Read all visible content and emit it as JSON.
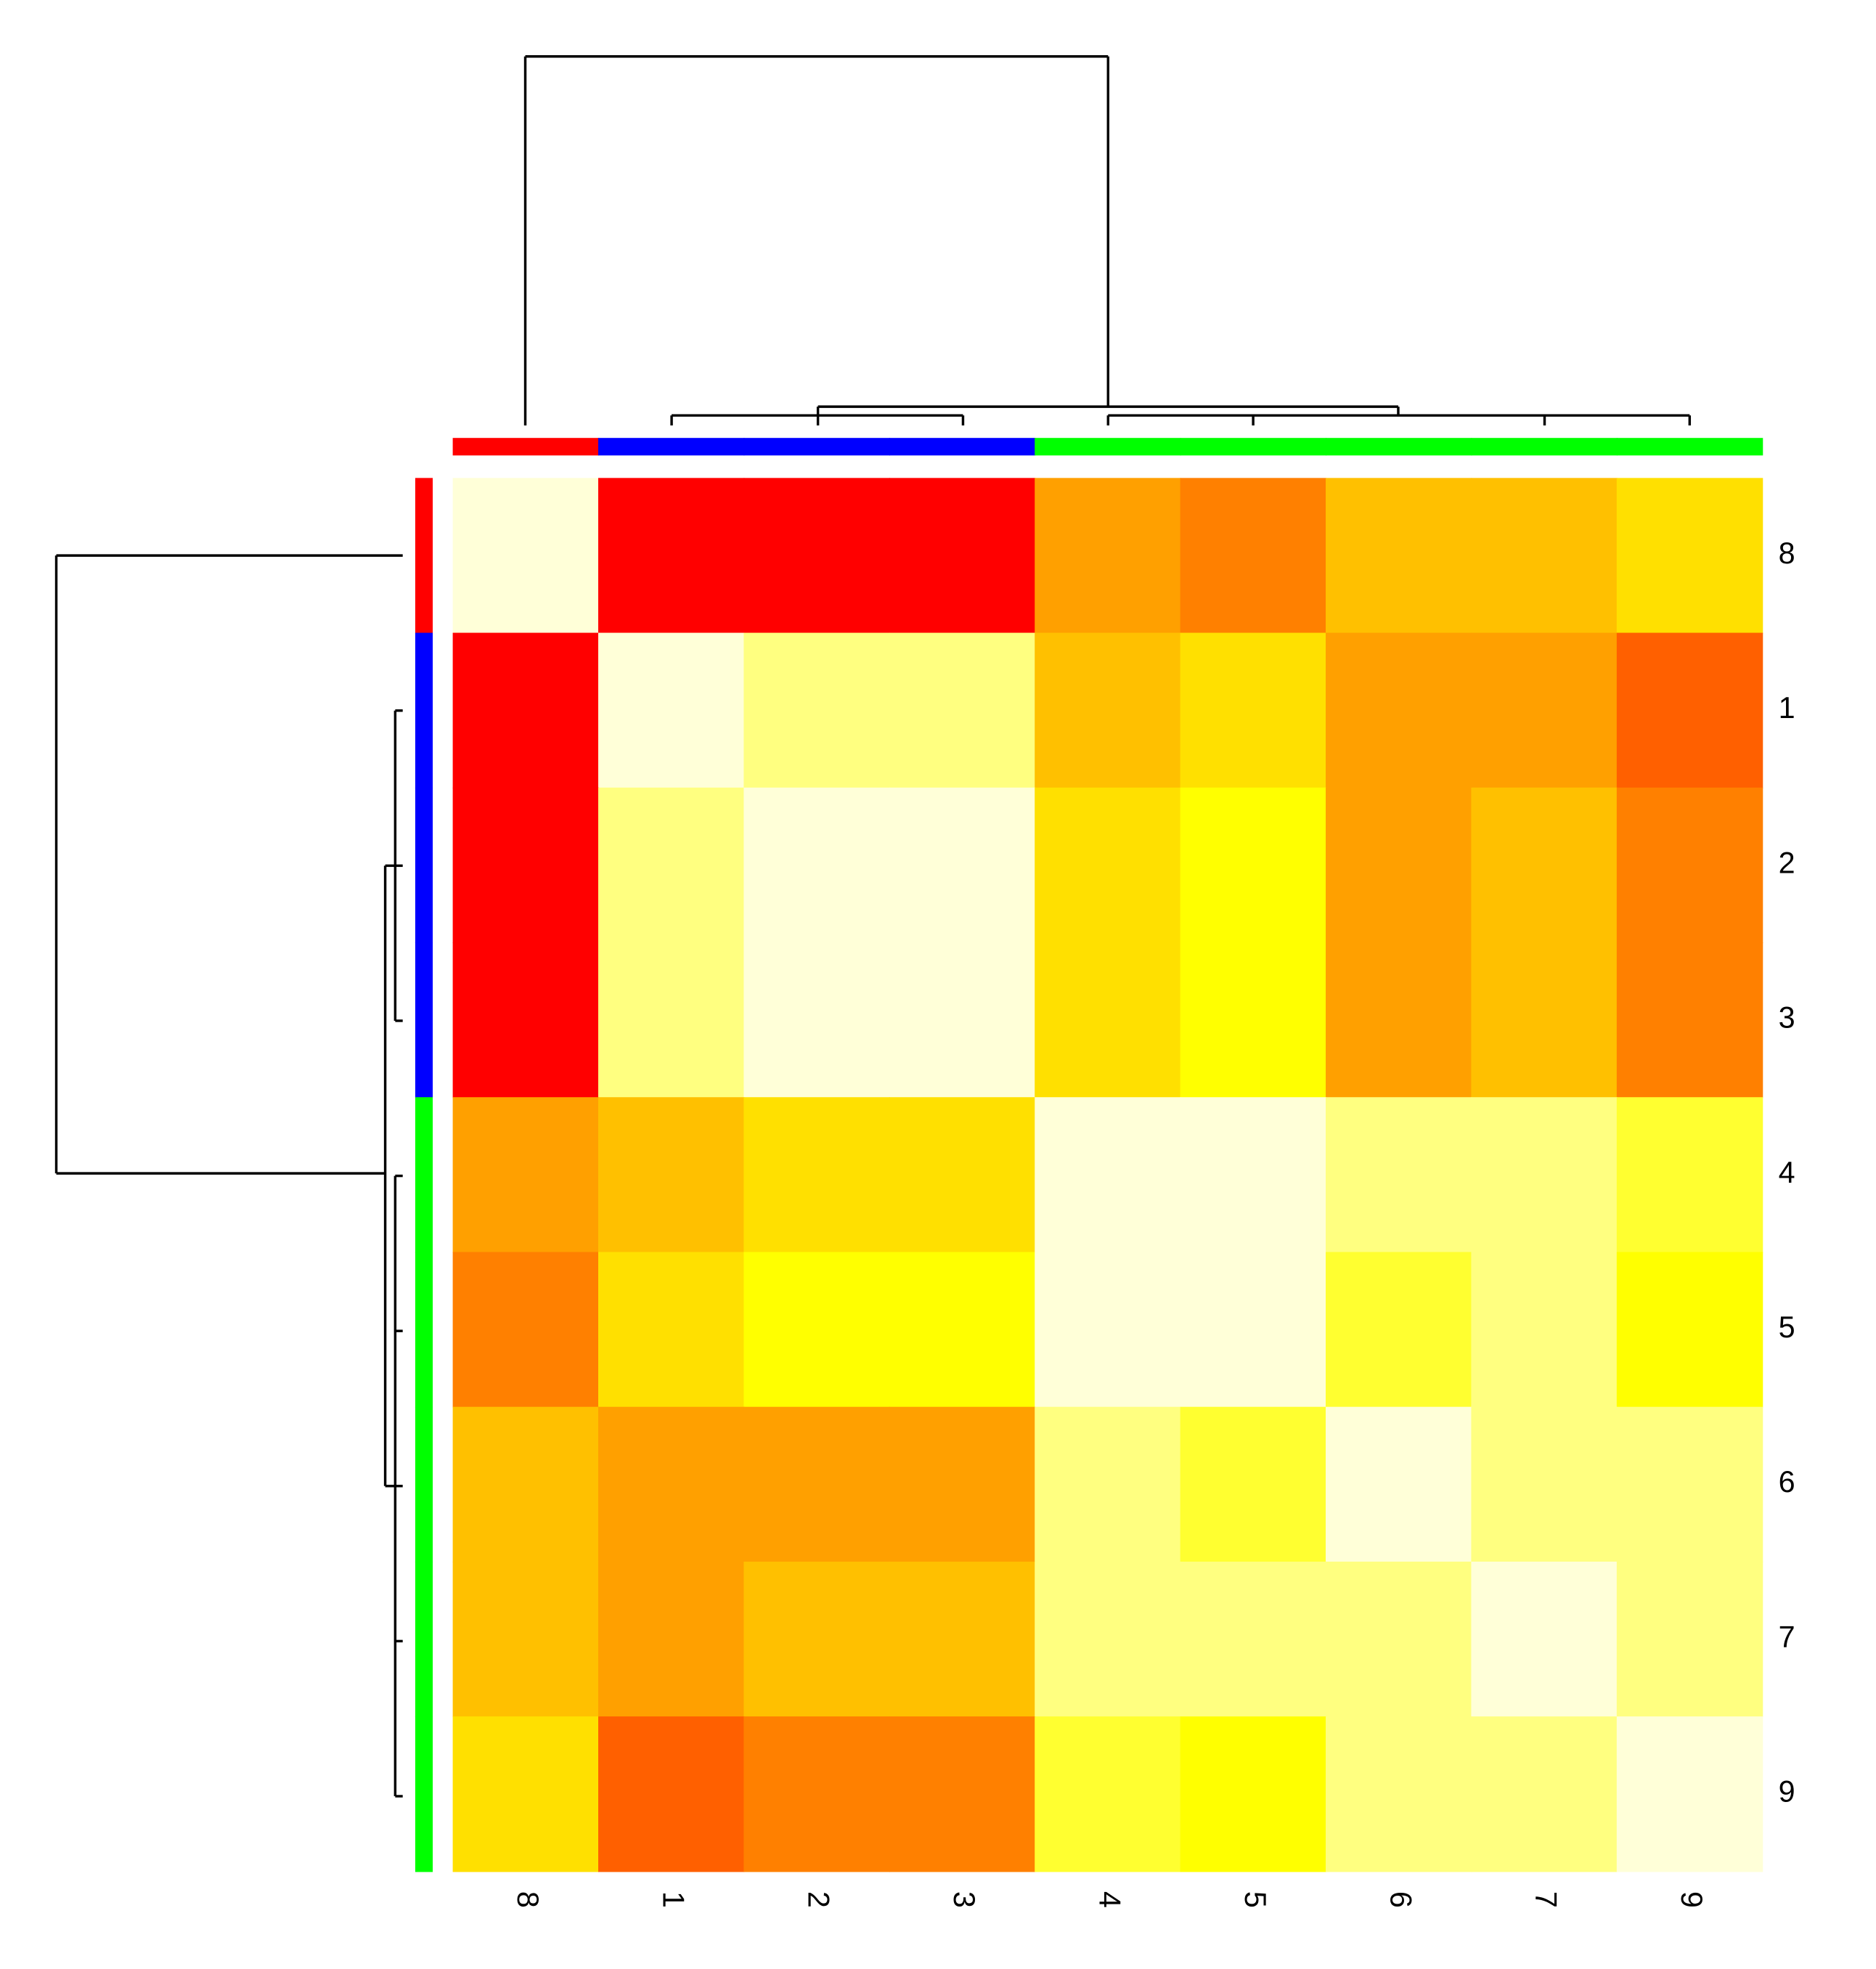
{
  "chart_data": {
    "type": "heatmap",
    "row_labels": [
      "8",
      "1",
      "2",
      "3",
      "4",
      "5",
      "6",
      "7",
      "9"
    ],
    "col_labels": [
      "8",
      "1",
      "2",
      "3",
      "4",
      "5",
      "6",
      "7",
      "9"
    ],
    "row_side_colors": [
      "#ff0000",
      "#0000ff",
      "#0000ff",
      "#0000ff",
      "#00ff00",
      "#00ff00",
      "#00ff00",
      "#00ff00",
      "#00ff00"
    ],
    "col_side_colors": [
      "#ff0000",
      "#0000ff",
      "#0000ff",
      "#0000ff",
      "#00ff00",
      "#00ff00",
      "#00ff00",
      "#00ff00",
      "#00ff00"
    ],
    "palette": [
      "#ffffd8",
      "#ffff80",
      "#ffff30",
      "#ffff00",
      "#ffe000",
      "#ffc000",
      "#ffa000",
      "#ff8000",
      "#ff6000",
      "#ff0000"
    ],
    "zlim": [
      0,
      9
    ],
    "values": [
      [
        0,
        9,
        9,
        9,
        6,
        7,
        5,
        5,
        4
      ],
      [
        9,
        0,
        1,
        1,
        5,
        4,
        6,
        6,
        8
      ],
      [
        9,
        1,
        0,
        0,
        4,
        3,
        6,
        5,
        7
      ],
      [
        9,
        1,
        0,
        0,
        4,
        3,
        6,
        5,
        7
      ],
      [
        6,
        5,
        4,
        4,
        0,
        0,
        1,
        1,
        2
      ],
      [
        7,
        4,
        3,
        3,
        0,
        0,
        2,
        1,
        3
      ],
      [
        5,
        6,
        6,
        6,
        1,
        2,
        0,
        1,
        1
      ],
      [
        5,
        6,
        5,
        5,
        1,
        1,
        1,
        0,
        1
      ],
      [
        4,
        8,
        7,
        7,
        2,
        3,
        1,
        1,
        0
      ]
    ]
  }
}
